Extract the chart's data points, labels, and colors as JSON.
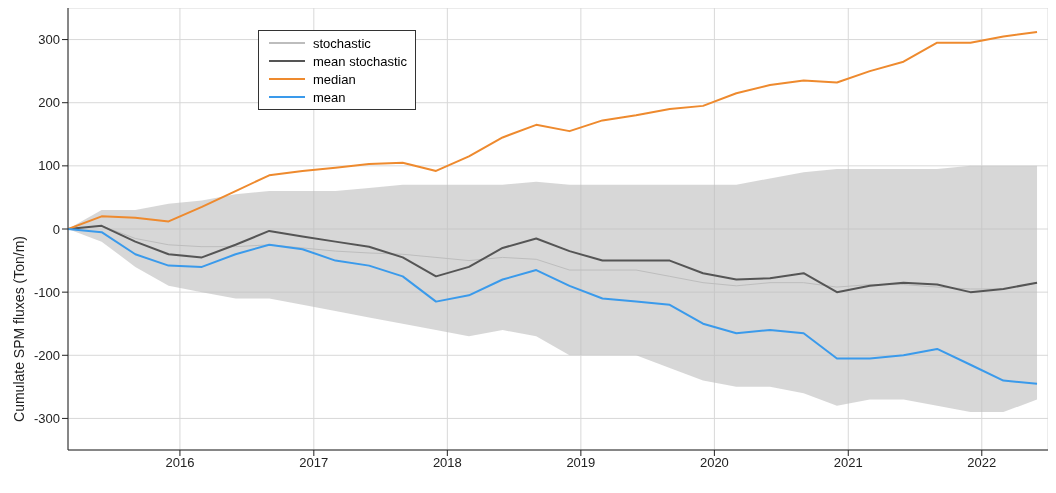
{
  "chart_data": {
    "type": "line",
    "ylabel": "Cumulate SPM fluxes (Ton/m)",
    "x": [
      "2015-03",
      "2015-06",
      "2015-09",
      "2015-12",
      "2016-03",
      "2016-06",
      "2016-09",
      "2016-12",
      "2017-03",
      "2017-06",
      "2017-09",
      "2017-12",
      "2018-03",
      "2018-06",
      "2018-09",
      "2018-12",
      "2019-03",
      "2019-06",
      "2019-09",
      "2019-12",
      "2020-03",
      "2020-06",
      "2020-09",
      "2020-12",
      "2021-03",
      "2021-06",
      "2021-09",
      "2021-12",
      "2022-03",
      "2022-06"
    ],
    "series": [
      {
        "name": "stochastic",
        "color": "#bdbdbd",
        "values": [
          0,
          5,
          -15,
          -25,
          -28,
          -28,
          -25,
          -30,
          -35,
          -38,
          -40,
          -45,
          -50,
          -45,
          -48,
          -65,
          -65,
          -65,
          -75,
          -85,
          -90,
          -85,
          -85,
          -92,
          -88,
          -88,
          -92,
          -95,
          -95,
          -85
        ],
        "lower": [
          0,
          -20,
          -60,
          -90,
          -100,
          -110,
          -110,
          -120,
          -130,
          -140,
          -150,
          -160,
          -170,
          -160,
          -170,
          -200,
          -200,
          -200,
          -220,
          -240,
          -250,
          -250,
          -260,
          -280,
          -270,
          -270,
          -280,
          -290,
          -290,
          -270
        ],
        "upper": [
          0,
          30,
          30,
          40,
          45,
          55,
          60,
          60,
          60,
          65,
          70,
          70,
          70,
          70,
          75,
          70,
          70,
          70,
          70,
          70,
          70,
          80,
          90,
          95,
          95,
          95,
          95,
          100,
          100,
          100
        ]
      },
      {
        "name": "mean stochastic",
        "color": "#555555",
        "values": [
          0,
          5,
          -20,
          -40,
          -45,
          -25,
          -3,
          -12,
          -20,
          -28,
          -45,
          -75,
          -60,
          -30,
          -15,
          -35,
          -50,
          -50,
          -50,
          -70,
          -80,
          -78,
          -70,
          -100,
          -90,
          -85,
          -88,
          -100,
          -95,
          -85
        ]
      },
      {
        "name": "median",
        "color": "#ee8a2e",
        "values": [
          0,
          20,
          18,
          12,
          35,
          60,
          85,
          92,
          97,
          103,
          105,
          92,
          115,
          145,
          165,
          155,
          172,
          180,
          190,
          195,
          215,
          228,
          235,
          232,
          250,
          265,
          295,
          295,
          305,
          312
        ]
      },
      {
        "name": "mean",
        "color": "#3a9aeb",
        "values": [
          0,
          -5,
          -40,
          -58,
          -60,
          -40,
          -25,
          -32,
          -50,
          -58,
          -75,
          -115,
          -105,
          -80,
          -65,
          -90,
          -110,
          -115,
          -120,
          -150,
          -165,
          -160,
          -165,
          -205,
          -205,
          -200,
          -190,
          -215,
          -240,
          -245
        ]
      }
    ],
    "xlim": [
      "2015-03",
      "2022-07"
    ],
    "xticks": [
      "2016",
      "2017",
      "2018",
      "2019",
      "2020",
      "2021",
      "2022"
    ],
    "ylim": [
      -350,
      350
    ],
    "yticks": [
      -300,
      -200,
      -100,
      0,
      100,
      200,
      300
    ],
    "grid": true,
    "legend": "top left",
    "marker": "none",
    "line_style": "solid"
  }
}
